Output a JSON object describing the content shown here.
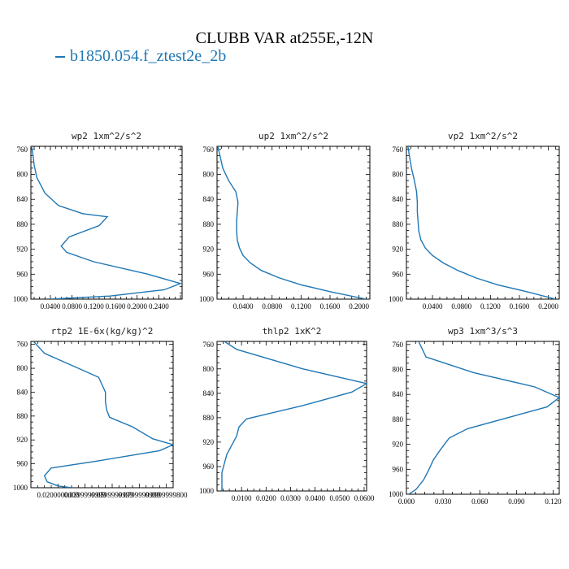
{
  "figure": {
    "title": "CLUBB VAR at255E,-12N",
    "legend": {
      "label": "b1850.054.f_ztest2e_2b",
      "color": "#1f77b4"
    }
  },
  "chart_data": [
    {
      "type": "line",
      "title": "wp2   1xm^2/s^2",
      "xticks": [
        0.04,
        0.08,
        0.12,
        0.16,
        0.2,
        0.24
      ],
      "xtick_labels": [
        "0.0400",
        "0.0800",
        "0.1200",
        "0.1600",
        "0.2000",
        "0.2400"
      ],
      "xlim": [
        0.004,
        0.283
      ],
      "yticks": [
        760,
        800,
        840,
        880,
        920,
        960,
        1000
      ],
      "ylim": [
        1000,
        755
      ],
      "series": [
        {
          "color": "#1f77b4",
          "x": [
            0.005,
            0.008,
            0.01,
            0.015,
            0.03,
            0.055,
            0.1,
            0.145,
            0.13,
            0.075,
            0.06,
            0.07,
            0.12,
            0.22,
            0.28,
            0.25,
            0.15,
            0.04
          ],
          "y": [
            755,
            770,
            785,
            805,
            830,
            850,
            863,
            868,
            882,
            900,
            915,
            925,
            940,
            960,
            975,
            985,
            995,
            1000
          ]
        }
      ]
    },
    {
      "type": "line",
      "title": "up2   1xm^2/s^2",
      "xticks": [
        0.04,
        0.08,
        0.12,
        0.16,
        0.2
      ],
      "xtick_labels": [
        "0.0400",
        "0.0800",
        "0.1200",
        "0.1600",
        "0.2000"
      ],
      "xlim": [
        0.004,
        0.215
      ],
      "yticks": [
        760,
        800,
        840,
        880,
        920,
        960,
        1000
      ],
      "ylim": [
        1000,
        755
      ],
      "series": [
        {
          "color": "#1f77b4",
          "x": [
            0.005,
            0.008,
            0.012,
            0.02,
            0.03,
            0.033,
            0.032,
            0.031,
            0.031,
            0.032,
            0.035,
            0.04,
            0.05,
            0.065,
            0.09,
            0.12,
            0.16,
            0.21
          ],
          "y": [
            755,
            770,
            790,
            810,
            828,
            845,
            860,
            875,
            890,
            905,
            918,
            930,
            942,
            954,
            966,
            977,
            988,
            1000
          ]
        }
      ]
    },
    {
      "type": "line",
      "title": "vp2   1xm^2/s^2",
      "xticks": [
        0.04,
        0.08,
        0.12,
        0.16,
        0.2
      ],
      "xtick_labels": [
        "0.0400",
        "0.0800",
        "0.1200",
        "0.1600",
        "0.2000"
      ],
      "xlim": [
        0.004,
        0.215
      ],
      "yticks": [
        760,
        800,
        840,
        880,
        920,
        960,
        1000
      ],
      "ylim": [
        1000,
        755
      ],
      "series": [
        {
          "color": "#1f77b4",
          "x": [
            0.006,
            0.008,
            0.011,
            0.015,
            0.018,
            0.019,
            0.019,
            0.02,
            0.021,
            0.024,
            0.03,
            0.04,
            0.055,
            0.075,
            0.1,
            0.13,
            0.17,
            0.21
          ],
          "y": [
            755,
            770,
            790,
            810,
            828,
            845,
            860,
            875,
            890,
            905,
            918,
            930,
            942,
            954,
            966,
            977,
            988,
            1000
          ]
        }
      ]
    },
    {
      "type": "line",
      "title": "rtp2   1E-6x(kg/kg)^2",
      "xticks": [
        0.02,
        0.04,
        0.06,
        0.08,
        0.1
      ],
      "xtick_labels": [
        "0.0200000000",
        "0.0399999999",
        "0.0599999999",
        "0.0799999999",
        "0.0999999800"
      ],
      "xlim": [
        0.0,
        0.105
      ],
      "yticks": [
        760,
        800,
        840,
        880,
        920,
        960,
        1000
      ],
      "ylim": [
        1000,
        755
      ],
      "series": [
        {
          "color": "#1f77b4",
          "x": [
            0.002,
            0.01,
            0.03,
            0.05,
            0.055,
            0.055,
            0.056,
            0.058,
            0.075,
            0.09,
            0.105,
            0.095,
            0.05,
            0.015,
            0.01,
            0.012,
            0.02,
            0.03
          ],
          "y": [
            755,
            775,
            795,
            815,
            840,
            856,
            870,
            882,
            898,
            918,
            928,
            938,
            955,
            967,
            980,
            990,
            997,
            1000
          ]
        }
      ]
    },
    {
      "type": "line",
      "title": "thlp2   1xK^2",
      "xticks": [
        0.01,
        0.02,
        0.03,
        0.04,
        0.05,
        0.06
      ],
      "xtick_labels": [
        "0.0100",
        "0.0200",
        "0.0300",
        "0.0400",
        "0.0500",
        "0.0600"
      ],
      "xlim": [
        0.0,
        0.061
      ],
      "yticks": [
        760,
        800,
        840,
        880,
        920,
        960,
        1000
      ],
      "ylim": [
        1000,
        755
      ],
      "series": [
        {
          "color": "#1f77b4",
          "x": [
            0.003,
            0.008,
            0.035,
            0.061,
            0.055,
            0.035,
            0.012,
            0.009,
            0.008,
            0.006,
            0.004,
            0.003,
            0.002,
            0.002,
            0.002,
            0.002
          ],
          "y": [
            755,
            768,
            800,
            824,
            838,
            860,
            882,
            895,
            910,
            925,
            940,
            955,
            970,
            985,
            995,
            1000
          ]
        }
      ]
    },
    {
      "type": "line",
      "title": "wp3   1xm^3/s^3",
      "xticks": [
        0.0,
        0.03,
        0.06,
        0.09,
        0.12
      ],
      "xtick_labels": [
        "0.000",
        "0.030",
        "0.060",
        "0.090",
        "0.120"
      ],
      "xlim": [
        0.0,
        0.125
      ],
      "yticks": [
        760,
        800,
        840,
        880,
        920,
        960,
        1000
      ],
      "ylim": [
        1000,
        755
      ],
      "series": [
        {
          "color": "#1f77b4",
          "x": [
            0.01,
            0.016,
            0.055,
            0.105,
            0.125,
            0.115,
            0.05,
            0.035,
            0.028,
            0.022,
            0.018,
            0.014,
            0.008,
            0.002
          ],
          "y": [
            755,
            780,
            805,
            828,
            845,
            860,
            895,
            910,
            928,
            945,
            962,
            977,
            992,
            1000
          ]
        }
      ]
    }
  ]
}
